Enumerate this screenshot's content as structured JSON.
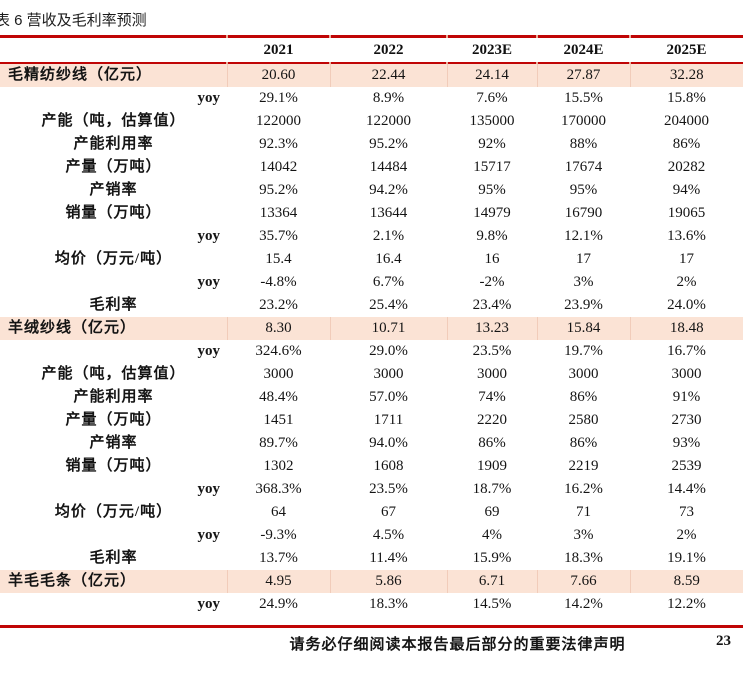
{
  "title": "表 6 营收及毛利率预测",
  "table": {
    "columns": [
      "2021",
      "2022",
      "2023E",
      "2024E",
      "2025E"
    ],
    "rows": [
      {
        "label": "毛精纺纱线（亿元）",
        "type": "section",
        "values": [
          "20.60",
          "22.44",
          "24.14",
          "27.87",
          "32.28"
        ]
      },
      {
        "label": "yoy",
        "type": "yoy",
        "values": [
          "29.1%",
          "8.9%",
          "7.6%",
          "15.5%",
          "15.8%"
        ]
      },
      {
        "label": "产能（吨，估算值）",
        "type": "metric",
        "values": [
          "122000",
          "122000",
          "135000",
          "170000",
          "204000"
        ]
      },
      {
        "label": "产能利用率",
        "type": "metric",
        "values": [
          "92.3%",
          "95.2%",
          "92%",
          "88%",
          "86%"
        ]
      },
      {
        "label": "产量（万吨）",
        "type": "metric",
        "values": [
          "14042",
          "14484",
          "15717",
          "17674",
          "20282"
        ]
      },
      {
        "label": "产销率",
        "type": "metric",
        "values": [
          "95.2%",
          "94.2%",
          "95%",
          "95%",
          "94%"
        ]
      },
      {
        "label": "销量（万吨）",
        "type": "metric",
        "values": [
          "13364",
          "13644",
          "14979",
          "16790",
          "19065"
        ]
      },
      {
        "label": "yoy",
        "type": "yoy",
        "values": [
          "35.7%",
          "2.1%",
          "9.8%",
          "12.1%",
          "13.6%"
        ]
      },
      {
        "label": "均价（万元/吨）",
        "type": "metric",
        "values": [
          "15.4",
          "16.4",
          "16",
          "17",
          "17"
        ]
      },
      {
        "label": "yoy",
        "type": "yoy",
        "values": [
          "-4.8%",
          "6.7%",
          "-2%",
          "3%",
          "2%"
        ]
      },
      {
        "label": "毛利率",
        "type": "metric",
        "values": [
          "23.2%",
          "25.4%",
          "23.4%",
          "23.9%",
          "24.0%"
        ]
      },
      {
        "label": "羊绒纱线（亿元）",
        "type": "section",
        "values": [
          "8.30",
          "10.71",
          "13.23",
          "15.84",
          "18.48"
        ]
      },
      {
        "label": "yoy",
        "type": "yoy",
        "values": [
          "324.6%",
          "29.0%",
          "23.5%",
          "19.7%",
          "16.7%"
        ]
      },
      {
        "label": "产能（吨，估算值）",
        "type": "metric",
        "values": [
          "3000",
          "3000",
          "3000",
          "3000",
          "3000"
        ]
      },
      {
        "label": "产能利用率",
        "type": "metric",
        "values": [
          "48.4%",
          "57.0%",
          "74%",
          "86%",
          "91%"
        ]
      },
      {
        "label": "产量（万吨）",
        "type": "metric",
        "values": [
          "1451",
          "1711",
          "2220",
          "2580",
          "2730"
        ]
      },
      {
        "label": "产销率",
        "type": "metric",
        "values": [
          "89.7%",
          "94.0%",
          "86%",
          "86%",
          "93%"
        ]
      },
      {
        "label": "销量（万吨）",
        "type": "metric",
        "values": [
          "1302",
          "1608",
          "1909",
          "2219",
          "2539"
        ]
      },
      {
        "label": "yoy",
        "type": "yoy",
        "values": [
          "368.3%",
          "23.5%",
          "18.7%",
          "16.2%",
          "14.4%"
        ]
      },
      {
        "label": "均价（万元/吨）",
        "type": "metric",
        "values": [
          "64",
          "67",
          "69",
          "71",
          "73"
        ]
      },
      {
        "label": "yoy",
        "type": "yoy",
        "values": [
          "-9.3%",
          "4.5%",
          "4%",
          "3%",
          "2%"
        ]
      },
      {
        "label": "毛利率",
        "type": "metric",
        "values": [
          "13.7%",
          "11.4%",
          "15.9%",
          "18.3%",
          "19.1%"
        ]
      },
      {
        "label": "羊毛毛条（亿元）",
        "type": "section",
        "values": [
          "4.95",
          "5.86",
          "6.71",
          "7.66",
          "8.59"
        ]
      },
      {
        "label": "yoy",
        "type": "yoy",
        "values": [
          "24.9%",
          "18.3%",
          "14.5%",
          "14.2%",
          "12.2%"
        ]
      }
    ]
  },
  "footer": {
    "disclaimer": "请务必仔细阅读本报告最后部分的重要法律声明",
    "page_number": "23"
  },
  "colors": {
    "accent_red": "#c00505",
    "section_row_bg": "#fbe3d5"
  }
}
